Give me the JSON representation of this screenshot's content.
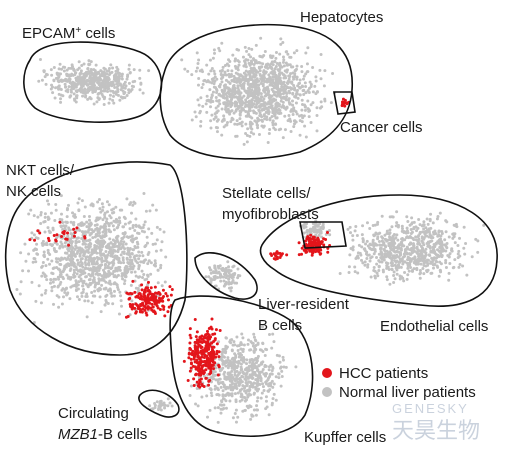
{
  "clusters": [
    {
      "lines": [
        {
          "parts": [
            {
              "text": "EPCAM"
            },
            {
              "text": "+",
              "style": "superscript"
            },
            {
              "text": " cells"
            }
          ]
        }
      ]
    },
    {
      "lines": [
        {
          "parts": [
            {
              "text": "Hepatocytes"
            }
          ]
        }
      ]
    },
    {
      "lines": [
        {
          "parts": [
            {
              "text": "Cancer cells"
            }
          ]
        }
      ]
    },
    {
      "lines": [
        {
          "parts": [
            {
              "text": "NKT cells/"
            }
          ]
        },
        {
          "parts": [
            {
              "text": "NK cells"
            }
          ]
        }
      ]
    },
    {
      "lines": [
        {
          "parts": [
            {
              "text": "Stellate cells/"
            }
          ]
        },
        {
          "parts": [
            {
              "text": "myofibroblasts"
            }
          ]
        }
      ]
    },
    {
      "lines": [
        {
          "parts": [
            {
              "text": "Liver-resident"
            }
          ]
        },
        {
          "parts": [
            {
              "text": "B cells"
            }
          ]
        }
      ]
    },
    {
      "lines": [
        {
          "parts": [
            {
              "text": "Endothelial cells"
            }
          ]
        }
      ]
    },
    {
      "lines": [
        {
          "parts": [
            {
              "text": "Circulating"
            }
          ]
        },
        {
          "parts": [
            {
              "text": "MZB1",
              "style": "italic"
            },
            {
              "text": "-B cells"
            }
          ]
        }
      ]
    },
    {
      "lines": [
        {
          "parts": [
            {
              "text": "Kupffer cells"
            }
          ]
        }
      ]
    }
  ],
  "legend": [
    {
      "label": "HCC patients",
      "color": "#e3151b"
    },
    {
      "label": "Normal liver patients",
      "color": "#c2c2c2"
    }
  ],
  "watermark": {
    "latin": "GENESKY",
    "chinese": "天昊生物"
  }
}
